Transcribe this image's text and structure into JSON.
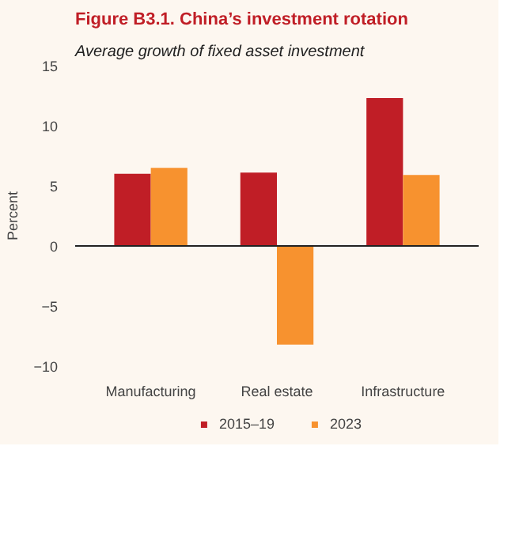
{
  "chart_data": {
    "type": "bar",
    "title": "Figure B3.1. China’s investment rotation",
    "subtitle": "Average growth of fixed asset investment",
    "ylabel": "Percent",
    "categories": [
      "Manufacturing",
      "Real estate",
      "Infrastructure"
    ],
    "series": [
      {
        "name": "2015–19",
        "color": "#c01e26",
        "values": [
          6.0,
          6.1,
          12.3
        ]
      },
      {
        "name": "2023",
        "color": "#f7922f",
        "values": [
          6.5,
          -8.2,
          5.9
        ]
      }
    ],
    "ylim": [
      -10,
      15
    ],
    "yticks": [
      {
        "value": -10,
        "label": "−10"
      },
      {
        "value": -5,
        "label": "−5"
      },
      0,
      5,
      10,
      15
    ],
    "grid": false,
    "legend": "bottom",
    "ref_lines": [
      {
        "axis": "y",
        "value": 0,
        "color": "#222222"
      }
    ]
  }
}
